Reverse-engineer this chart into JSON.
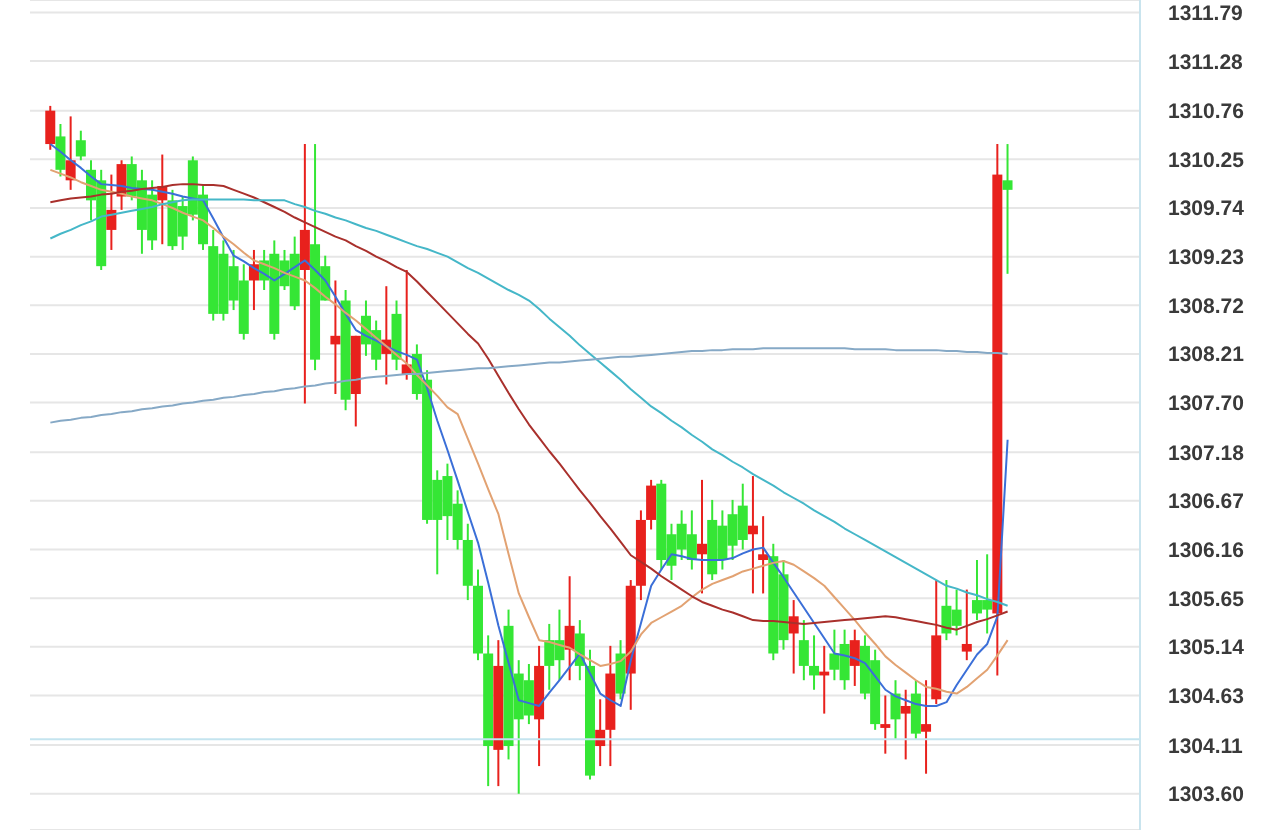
{
  "chart_data": {
    "type": "candlestick",
    "categories": [
      null,
      null,
      null,
      null,
      null,
      null,
      null,
      null,
      null,
      null,
      null,
      null,
      null,
      null,
      null,
      null,
      null,
      null,
      null,
      null,
      null,
      null,
      null,
      null,
      null,
      null,
      null,
      null,
      null,
      null,
      null,
      null,
      null,
      null,
      null,
      null,
      null,
      null,
      null,
      null,
      null,
      null,
      null,
      null,
      null,
      null,
      null,
      null,
      null,
      null,
      null,
      null,
      null,
      null,
      null,
      null,
      null,
      null,
      null,
      null,
      null,
      null,
      null,
      null,
      null,
      null,
      null,
      null,
      null,
      null,
      null,
      null,
      null,
      null,
      null,
      null,
      null,
      null,
      null,
      null,
      null,
      null,
      null,
      null,
      null,
      null,
      null,
      null,
      null,
      null,
      null,
      null,
      null,
      null,
      null
    ],
    "ohlc": [
      [
        1310.41,
        1310.81,
        1310.35,
        1310.76
      ],
      [
        1310.49,
        1310.62,
        1310.07,
        1310.14
      ],
      [
        1310.03,
        1310.7,
        1309.93,
        1310.24
      ],
      [
        1310.45,
        1310.55,
        1310.24,
        1310.28
      ],
      [
        1310.14,
        1310.24,
        1309.61,
        1309.82
      ],
      [
        1310.03,
        1310.14,
        1309.09,
        1309.13
      ],
      [
        1309.51,
        1310.09,
        1309.3,
        1309.72
      ],
      [
        1309.86,
        1310.24,
        1309.72,
        1310.2
      ],
      [
        1310.2,
        1310.28,
        1309.82,
        1309.86
      ],
      [
        1310.03,
        1310.14,
        1309.26,
        1309.51
      ],
      [
        1309.88,
        1310.03,
        1309.3,
        1309.4
      ],
      [
        1309.82,
        1310.3,
        1309.36,
        1309.97
      ],
      [
        1309.82,
        1309.93,
        1309.3,
        1309.34
      ],
      [
        1309.76,
        1309.86,
        1309.3,
        1309.44
      ],
      [
        1310.24,
        1310.28,
        1309.61,
        1309.67
      ],
      [
        1309.88,
        1309.99,
        1309.3,
        1309.36
      ],
      [
        1309.34,
        1309.51,
        1308.56,
        1308.63
      ],
      [
        1309.26,
        1309.4,
        1308.56,
        1308.63
      ],
      [
        1309.13,
        1309.3,
        1308.67,
        1308.77
      ],
      [
        1308.98,
        1309.15,
        1308.36,
        1308.42
      ],
      [
        1308.98,
        1309.3,
        1308.67,
        1309.15
      ],
      [
        1309.19,
        1309.3,
        1308.88,
        1308.98
      ],
      [
        1309.26,
        1309.4,
        1308.36,
        1308.42
      ],
      [
        1309.19,
        1309.3,
        1308.88,
        1308.92
      ],
      [
        1309.26,
        1309.44,
        1308.67,
        1308.71
      ],
      [
        1309.09,
        1310.41,
        1307.69,
        1309.51
      ],
      [
        1309.36,
        1310.41,
        1308.04,
        1308.15
      ],
      [
        1309.13,
        1309.24,
        1308.77,
        1308.77
      ],
      [
        1308.31,
        1308.98,
        1307.79,
        1308.4
      ],
      [
        1308.77,
        1308.88,
        1307.62,
        1307.73
      ],
      [
        1307.79,
        1308.4,
        1307.45,
        1308.4
      ],
      [
        1308.61,
        1308.77,
        1308.19,
        1308.31
      ],
      [
        1308.46,
        1308.56,
        1308.04,
        1308.15
      ],
      [
        1308.21,
        1308.92,
        1307.89,
        1308.36
      ],
      [
        1308.63,
        1308.77,
        1308.04,
        1308.15
      ],
      [
        1308.0,
        1309.09,
        1307.94,
        1308.1
      ],
      [
        1308.21,
        1308.31,
        1307.73,
        1307.79
      ],
      [
        1307.94,
        1308.04,
        1306.43,
        1306.47
      ],
      [
        1306.89,
        1306.99,
        1305.9,
        1306.47
      ],
      [
        1306.93,
        1307.06,
        1306.26,
        1306.51
      ],
      [
        1306.64,
        1306.78,
        1306.16,
        1306.26
      ],
      [
        1306.26,
        1306.43,
        1305.63,
        1305.78
      ],
      [
        1305.78,
        1305.95,
        1305.0,
        1305.07
      ],
      [
        1305.07,
        1305.26,
        1303.68,
        1304.1
      ],
      [
        1304.06,
        1305.21,
        1303.68,
        1304.94
      ],
      [
        1305.36,
        1305.53,
        1303.96,
        1304.1
      ],
      [
        1304.86,
        1305.0,
        1303.6,
        1304.38
      ],
      [
        1304.79,
        1304.96,
        1304.33,
        1304.42
      ],
      [
        1304.38,
        1305.15,
        1303.89,
        1304.94
      ],
      [
        1305.21,
        1305.38,
        1304.69,
        1304.94
      ],
      [
        1305.21,
        1305.53,
        1304.79,
        1305.0
      ],
      [
        1305.11,
        1305.88,
        1304.79,
        1305.36
      ],
      [
        1305.28,
        1305.42,
        1304.79,
        1304.94
      ],
      [
        1304.94,
        1305.11,
        1303.75,
        1303.79
      ],
      [
        1304.1,
        1304.59,
        1303.89,
        1304.27
      ],
      [
        1304.27,
        1305.15,
        1303.89,
        1304.86
      ],
      [
        1305.07,
        1305.21,
        1304.59,
        1304.65
      ],
      [
        1304.86,
        1305.84,
        1304.48,
        1305.78
      ],
      [
        1305.78,
        1306.57,
        1305.63,
        1306.47
      ],
      [
        1306.47,
        1306.89,
        1306.37,
        1306.83
      ],
      [
        1306.85,
        1306.89,
        1305.95,
        1306.05
      ],
      [
        1306.32,
        1306.43,
        1305.84,
        1305.99
      ],
      [
        1306.43,
        1306.57,
        1306.05,
        1306.16
      ],
      [
        1306.32,
        1306.57,
        1305.95,
        1306.05
      ],
      [
        1306.11,
        1306.89,
        1305.7,
        1306.22
      ],
      [
        1306.47,
        1306.68,
        1305.84,
        1305.9
      ],
      [
        1306.41,
        1306.57,
        1305.95,
        1306.05
      ],
      [
        1306.53,
        1306.68,
        1306.05,
        1306.2
      ],
      [
        1306.62,
        1306.85,
        1306.16,
        1306.26
      ],
      [
        1306.32,
        1306.93,
        1305.7,
        1306.41
      ],
      [
        1306.05,
        1306.51,
        1305.7,
        1306.11
      ],
      [
        1306.09,
        1306.22,
        1305.0,
        1305.07
      ],
      [
        1305.9,
        1306.05,
        1305.11,
        1305.21
      ],
      [
        1305.28,
        1305.63,
        1304.86,
        1305.46
      ],
      [
        1305.21,
        1305.42,
        1304.79,
        1304.94
      ],
      [
        1304.94,
        1305.26,
        1304.69,
        1304.84
      ],
      [
        1304.84,
        1305.15,
        1304.44,
        1304.88
      ],
      [
        1305.07,
        1305.32,
        1304.79,
        1304.9
      ],
      [
        1305.17,
        1305.32,
        1304.69,
        1304.79
      ],
      [
        1304.94,
        1305.32,
        1304.73,
        1305.21
      ],
      [
        1305.15,
        1305.26,
        1304.59,
        1304.65
      ],
      [
        1305.0,
        1305.11,
        1304.27,
        1304.33
      ],
      [
        1304.29,
        1304.63,
        1304.02,
        1304.33
      ],
      [
        1304.65,
        1304.79,
        1304.17,
        1304.38
      ],
      [
        1304.44,
        1304.69,
        1303.96,
        1304.52
      ],
      [
        1304.65,
        1304.79,
        1304.17,
        1304.23
      ],
      [
        1304.25,
        1304.79,
        1303.81,
        1304.33
      ],
      [
        1304.59,
        1305.84,
        1304.54,
        1305.26
      ],
      [
        1305.57,
        1305.84,
        1305.21,
        1305.28
      ],
      [
        1305.53,
        1305.74,
        1305.26,
        1305.36
      ],
      [
        1305.09,
        1305.74,
        1305.0,
        1305.17
      ],
      [
        1305.63,
        1306.05,
        1305.42,
        1305.49
      ],
      [
        1305.63,
        1306.11,
        1305.28,
        1305.53
      ],
      [
        1305.49,
        1310.41,
        1304.84,
        1310.09
      ],
      [
        1310.03,
        1310.41,
        1309.05,
        1309.93
      ]
    ],
    "colors": [
      "#e8211d",
      "#35e635",
      "#e8211d",
      "#35e635",
      "#35e635",
      "#35e635",
      "#e8211d",
      "#e8211d",
      "#35e635",
      "#35e635",
      "#35e635",
      "#e8211d",
      "#35e635",
      "#35e635",
      "#35e635",
      "#35e635",
      "#35e635",
      "#35e635",
      "#35e635",
      "#35e635",
      "#e8211d",
      "#35e635",
      "#35e635",
      "#35e635",
      "#35e635",
      "#e8211d",
      "#35e635",
      "#35e635",
      "#e8211d",
      "#35e635",
      "#e8211d",
      "#35e635",
      "#35e635",
      "#e8211d",
      "#35e635",
      "#e8211d",
      "#35e635",
      "#35e635",
      "#35e635",
      "#35e635",
      "#35e635",
      "#35e635",
      "#35e635",
      "#35e635",
      "#e8211d",
      "#35e635",
      "#35e635",
      "#35e635",
      "#e8211d",
      "#35e635",
      "#35e635",
      "#e8211d",
      "#35e635",
      "#35e635",
      "#e8211d",
      "#e8211d",
      "#35e635",
      "#e8211d",
      "#e8211d",
      "#e8211d",
      "#35e635",
      "#35e635",
      "#35e635",
      "#35e635",
      "#e8211d",
      "#35e635",
      "#35e635",
      "#35e635",
      "#35e635",
      "#e8211d",
      "#e8211d",
      "#35e635",
      "#35e635",
      "#e8211d",
      "#35e635",
      "#35e635",
      "#e8211d",
      "#35e635",
      "#35e635",
      "#e8211d",
      "#35e635",
      "#35e635",
      "#e8211d",
      "#35e635",
      "#e8211d",
      "#35e635",
      "#e8211d",
      "#e8211d",
      "#35e635",
      "#35e635",
      "#e8211d",
      "#35e635",
      "#35e635",
      "#e8211d",
      "#35e635"
    ],
    "series": [
      {
        "type": "line",
        "color": "#3b6fd8",
        "values": [
          1310.41,
          1310.33,
          1310.24,
          1310.16,
          1310.07,
          1309.99,
          1309.98,
          1309.97,
          1309.95,
          1309.94,
          1309.93,
          1309.91,
          1309.89,
          1309.86,
          1309.84,
          1309.82,
          1309.63,
          1309.43,
          1309.24,
          1309.18,
          1309.11,
          1309.05,
          1308.98,
          1309.05,
          1309.12,
          1309.19,
          1309.09,
          1308.98,
          1308.81,
          1308.63,
          1308.46,
          1308.4,
          1308.35,
          1308.29,
          1308.24,
          1308.2,
          1308.15,
          1307.85,
          1307.51,
          1307.2,
          1306.88,
          1306.55,
          1306.23,
          1305.81,
          1305.36,
          1304.97,
          1304.58,
          1304.55,
          1304.52,
          1304.66,
          1304.79,
          1304.93,
          1305.07,
          1304.86,
          1304.65,
          1304.58,
          1304.52,
          1305.0,
          1305.39,
          1305.78,
          1305.95,
          1306.11,
          1306.09,
          1306.06,
          1306.05,
          1306.05,
          1306.05,
          1306.07,
          1306.12,
          1306.16,
          1306.18,
          1306.02,
          1305.87,
          1305.71,
          1305.55,
          1305.39,
          1305.23,
          1305.07,
          1305.05,
          1305.02,
          1304.97,
          1304.83,
          1304.69,
          1304.62,
          1304.58,
          1304.54,
          1304.52,
          1304.52,
          1304.56,
          1304.74,
          1304.9,
          1305.06,
          1305.17,
          1305.46,
          1307.31
        ]
      },
      {
        "type": "line",
        "color": "#e2a272",
        "values": [
          1310.14,
          1310.1,
          1310.06,
          1310.01,
          1309.97,
          1309.93,
          1309.91,
          1309.89,
          1309.86,
          1309.84,
          1309.82,
          1309.78,
          1309.74,
          1309.69,
          1309.65,
          1309.61,
          1309.53,
          1309.44,
          1309.36,
          1309.27,
          1309.19,
          1309.15,
          1309.11,
          1309.06,
          1309.02,
          1308.98,
          1308.9,
          1308.81,
          1308.73,
          1308.64,
          1308.56,
          1308.47,
          1308.38,
          1308.29,
          1308.2,
          1308.11,
          1307.99,
          1307.88,
          1307.77,
          1307.65,
          1307.58,
          1307.32,
          1307.06,
          1306.79,
          1306.53,
          1306.11,
          1305.7,
          1305.45,
          1305.21,
          1305.19,
          1305.16,
          1305.13,
          1305.06,
          1305.0,
          1304.94,
          1304.96,
          1304.99,
          1305.09,
          1305.27,
          1305.39,
          1305.45,
          1305.51,
          1305.57,
          1305.66,
          1305.74,
          1305.8,
          1305.84,
          1305.88,
          1305.93,
          1305.96,
          1305.99,
          1306.02,
          1306.04,
          1306.0,
          1305.93,
          1305.86,
          1305.78,
          1305.66,
          1305.54,
          1305.42,
          1305.29,
          1305.17,
          1305.04,
          1304.95,
          1304.87,
          1304.79,
          1304.72,
          1304.7,
          1304.67,
          1304.65,
          1304.72,
          1304.81,
          1304.9,
          1305.05,
          1305.21
        ]
      },
      {
        "type": "line",
        "color": "#a9302c",
        "values": [
          1309.8,
          1309.82,
          1309.84,
          1309.85,
          1309.86,
          1309.88,
          1309.89,
          1309.91,
          1309.92,
          1309.94,
          1309.95,
          1309.96,
          1309.98,
          1309.99,
          1309.99,
          1309.98,
          1309.98,
          1309.97,
          1309.93,
          1309.89,
          1309.85,
          1309.8,
          1309.75,
          1309.7,
          1309.64,
          1309.59,
          1309.54,
          1309.49,
          1309.44,
          1309.4,
          1309.34,
          1309.29,
          1309.23,
          1309.18,
          1309.12,
          1309.07,
          1308.97,
          1308.86,
          1308.75,
          1308.64,
          1308.53,
          1308.42,
          1308.32,
          1308.16,
          1307.98,
          1307.8,
          1307.63,
          1307.47,
          1307.33,
          1307.19,
          1307.06,
          1306.92,
          1306.78,
          1306.65,
          1306.51,
          1306.38,
          1306.24,
          1306.1,
          1306.03,
          1305.96,
          1305.88,
          1305.81,
          1305.74,
          1305.67,
          1305.61,
          1305.57,
          1305.53,
          1305.5,
          1305.46,
          1305.42,
          1305.41,
          1305.41,
          1305.4,
          1305.39,
          1305.38,
          1305.39,
          1305.4,
          1305.41,
          1305.42,
          1305.43,
          1305.44,
          1305.45,
          1305.46,
          1305.45,
          1305.43,
          1305.41,
          1305.39,
          1305.37,
          1305.34,
          1305.32,
          1305.36,
          1305.4,
          1305.43,
          1305.47,
          1305.51
        ]
      },
      {
        "type": "line",
        "color": "#45b7c8",
        "values": [
          1309.42,
          1309.47,
          1309.51,
          1309.56,
          1309.6,
          1309.65,
          1309.67,
          1309.69,
          1309.71,
          1309.73,
          1309.75,
          1309.78,
          1309.8,
          1309.82,
          1309.83,
          1309.83,
          1309.83,
          1309.83,
          1309.83,
          1309.83,
          1309.82,
          1309.82,
          1309.82,
          1309.82,
          1309.78,
          1309.75,
          1309.71,
          1309.68,
          1309.64,
          1309.61,
          1309.57,
          1309.53,
          1309.5,
          1309.46,
          1309.42,
          1309.38,
          1309.34,
          1309.31,
          1309.27,
          1309.23,
          1309.17,
          1309.11,
          1309.06,
          1309.0,
          1308.94,
          1308.88,
          1308.83,
          1308.77,
          1308.68,
          1308.58,
          1308.49,
          1308.4,
          1308.3,
          1308.21,
          1308.12,
          1308.03,
          1307.94,
          1307.84,
          1307.75,
          1307.66,
          1307.59,
          1307.51,
          1307.44,
          1307.36,
          1307.29,
          1307.21,
          1307.15,
          1307.08,
          1307.02,
          1306.95,
          1306.89,
          1306.83,
          1306.76,
          1306.7,
          1306.64,
          1306.57,
          1306.51,
          1306.45,
          1306.38,
          1306.32,
          1306.26,
          1306.2,
          1306.14,
          1306.08,
          1306.02,
          1305.96,
          1305.9,
          1305.84,
          1305.78,
          1305.75,
          1305.71,
          1305.68,
          1305.64,
          1305.61,
          1305.57
        ]
      },
      {
        "type": "line",
        "color": "#86a9c6",
        "values": [
          1307.49,
          1307.51,
          1307.52,
          1307.54,
          1307.55,
          1307.57,
          1307.58,
          1307.6,
          1307.61,
          1307.63,
          1307.64,
          1307.66,
          1307.67,
          1307.69,
          1307.7,
          1307.72,
          1307.73,
          1307.75,
          1307.76,
          1307.78,
          1307.79,
          1307.81,
          1307.82,
          1307.84,
          1307.85,
          1307.87,
          1307.88,
          1307.9,
          1307.91,
          1307.93,
          1307.94,
          1307.96,
          1307.97,
          1307.98,
          1307.99,
          1308.0,
          1308.0,
          1308.01,
          1308.02,
          1308.03,
          1308.04,
          1308.05,
          1308.06,
          1308.06,
          1308.07,
          1308.08,
          1308.09,
          1308.1,
          1308.11,
          1308.12,
          1308.12,
          1308.13,
          1308.14,
          1308.15,
          1308.16,
          1308.17,
          1308.18,
          1308.18,
          1308.19,
          1308.2,
          1308.21,
          1308.22,
          1308.23,
          1308.24,
          1308.24,
          1308.25,
          1308.25,
          1308.26,
          1308.26,
          1308.26,
          1308.27,
          1308.27,
          1308.27,
          1308.27,
          1308.27,
          1308.27,
          1308.27,
          1308.27,
          1308.27,
          1308.26,
          1308.26,
          1308.26,
          1308.26,
          1308.25,
          1308.25,
          1308.25,
          1308.25,
          1308.25,
          1308.24,
          1308.24,
          1308.23,
          1308.23,
          1308.22,
          1308.22,
          1308.21
        ]
      }
    ],
    "ylim": [
      1303.22,
      1311.92
    ],
    "yticks": [
      {
        "value": 1303.6,
        "label": "1303.60"
      },
      1304.11,
      1304.63,
      1305.14,
      1305.65,
      1306.16,
      1306.67,
      1307.18,
      {
        "value": 1307.7,
        "label": "1307.70"
      },
      1308.21,
      1308.72,
      1309.23,
      1309.74,
      1310.25,
      1310.76,
      1311.28,
      1311.79
    ],
    "grid": "y",
    "tick_labels": "y",
    "ref_lines": [
      {
        "axis": "y",
        "value": 1304.17,
        "color": "#c4e4ef"
      }
    ]
  }
}
